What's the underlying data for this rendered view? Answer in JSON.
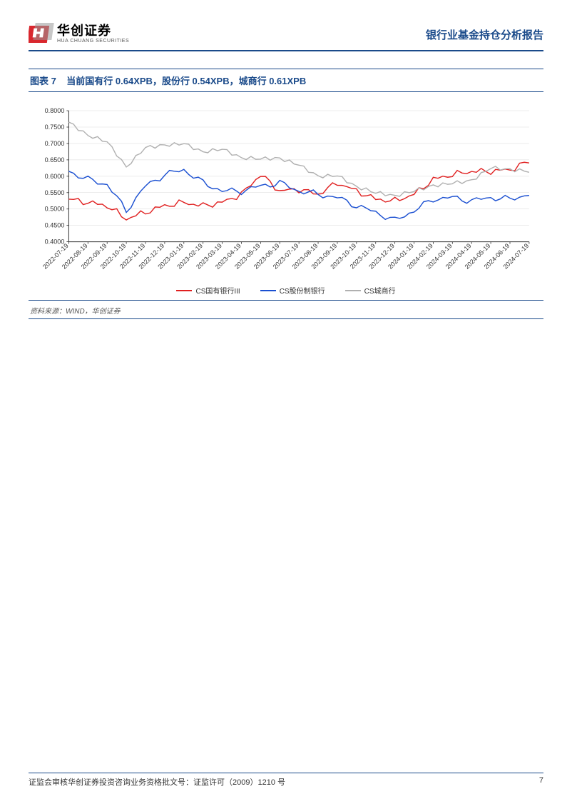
{
  "header": {
    "logo_cn": "华创证券",
    "logo_en": "HUA CHUANG SECURITIES",
    "report_title": "银行业基金持仓分析报告",
    "logo_colors": {
      "red": "#d9272e",
      "grey": "#999999"
    }
  },
  "figure": {
    "caption_prefix": "图表 7",
    "caption_text": "当前国有行 0.64XPB，股份行 0.54XPB，城商行 0.61XPB",
    "source": "资料来源：WIND，华创证券"
  },
  "chart": {
    "type": "line",
    "background_color": "#ffffff",
    "grid_color": "#d9d9d9",
    "axis_color": "#333333",
    "ylim": [
      0.4,
      0.8
    ],
    "ytick_step": 0.05,
    "yticks": [
      "0.4000",
      "0.4500",
      "0.5000",
      "0.5500",
      "0.6000",
      "0.6500",
      "0.7000",
      "0.7500",
      "0.8000"
    ],
    "label_fontsize": 9,
    "line_width": 1.4,
    "x_categories": [
      "2022-07-19",
      "2022-08-19",
      "2022-09-19",
      "2022-10-19",
      "2022-11-19",
      "2022-12-19",
      "2023-01-19",
      "2023-02-19",
      "2023-03-19",
      "2023-04-19",
      "2023-05-19",
      "2023-06-19",
      "2023-07-19",
      "2023-08-19",
      "2023-09-19",
      "2023-10-19",
      "2023-11-19",
      "2023-12-19",
      "2024-01-19",
      "2024-02-19",
      "2024-03-19",
      "2024-04-19",
      "2024-05-19",
      "2024-06-19",
      "2024-07-19"
    ],
    "series": [
      {
        "name": "CS国有银行III",
        "color": "#e02020",
        "values": [
          0.53,
          0.52,
          0.51,
          0.47,
          0.49,
          0.51,
          0.52,
          0.51,
          0.52,
          0.545,
          0.605,
          0.555,
          0.56,
          0.545,
          0.58,
          0.555,
          0.53,
          0.525,
          0.545,
          0.59,
          0.605,
          0.615,
          0.615,
          0.62,
          0.645
        ]
      },
      {
        "name": "CS股份制银行",
        "color": "#1a4fd1",
        "values": [
          0.615,
          0.59,
          0.575,
          0.495,
          0.57,
          0.605,
          0.62,
          0.58,
          0.555,
          0.555,
          0.57,
          0.58,
          0.555,
          0.545,
          0.535,
          0.51,
          0.49,
          0.465,
          0.495,
          0.53,
          0.535,
          0.525,
          0.535,
          0.53,
          0.545
        ]
      },
      {
        "name": "CS城商行",
        "color": "#b0b0b0",
        "values": [
          0.765,
          0.72,
          0.7,
          0.625,
          0.69,
          0.7,
          0.705,
          0.675,
          0.68,
          0.65,
          0.65,
          0.655,
          0.64,
          0.605,
          0.605,
          0.565,
          0.545,
          0.535,
          0.555,
          0.575,
          0.585,
          0.59,
          0.625,
          0.615,
          0.61
        ]
      }
    ]
  },
  "footer": {
    "license": "证监会审核华创证券投资咨询业务资格批文号：证监许可（2009）1210 号",
    "page_number": "7"
  }
}
